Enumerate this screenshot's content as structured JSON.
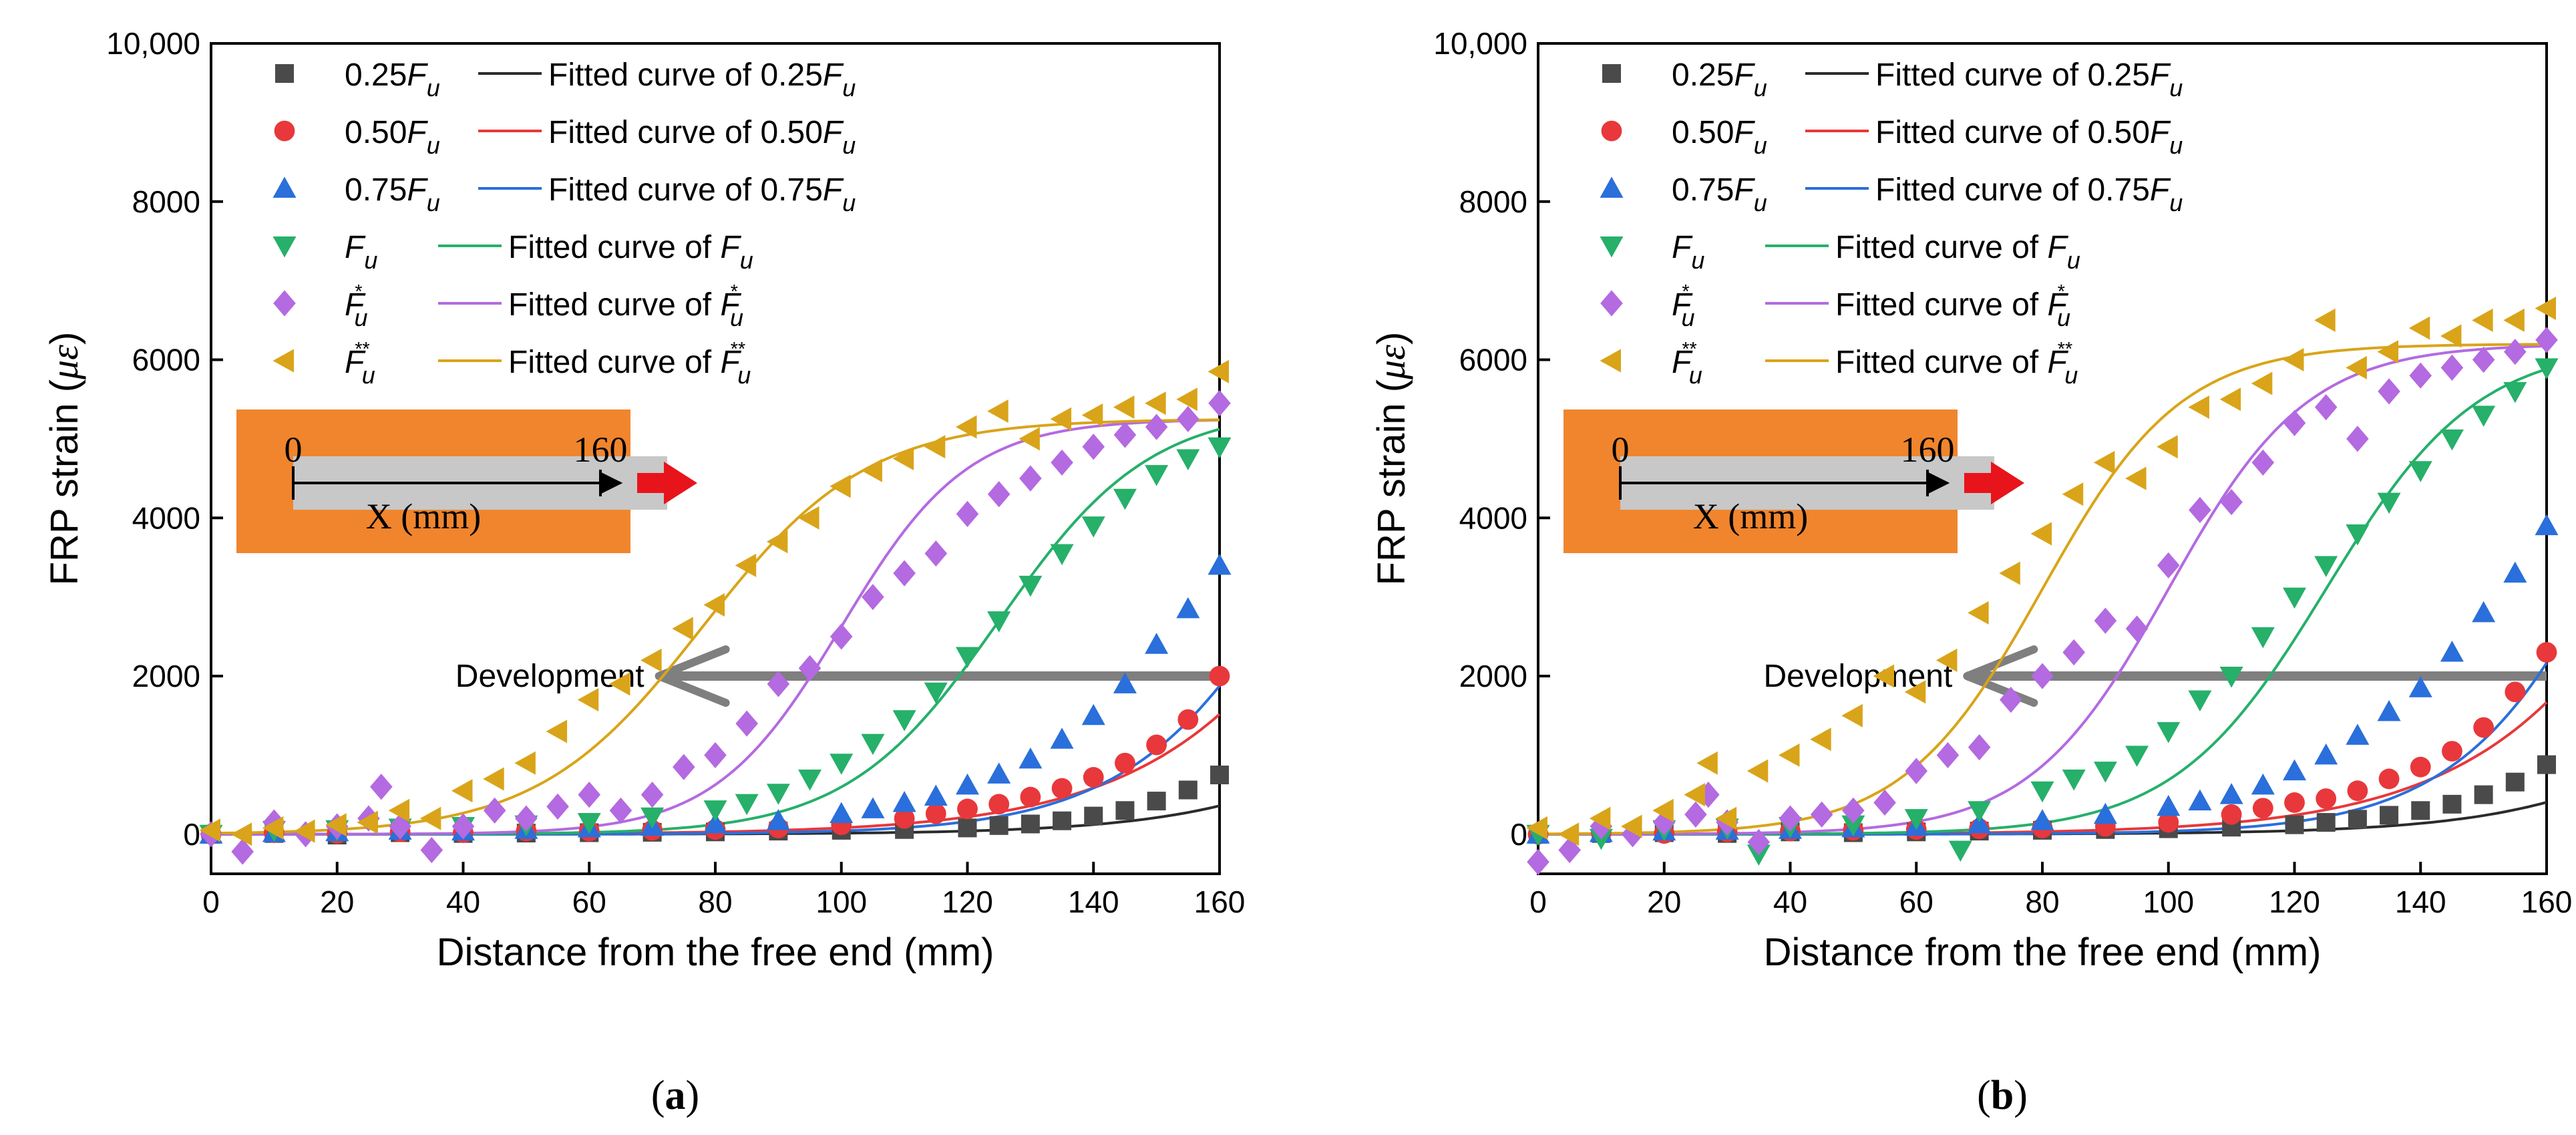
{
  "x_axis_label": "Distance from the free end (mm)",
  "y_axis_label_prefix": "FRP strain (",
  "y_axis_label_unit": "με",
  "y_axis_label_suffix": ")",
  "legend": [
    {
      "sym": "square",
      "color": "#4a4a4a",
      "line": "#2b2b2b",
      "label_num": "0.25",
      "fit_prefix": "Fitted curve of 0.25",
      "base": "F",
      "sub": "u",
      "sup": ""
    },
    {
      "sym": "circle",
      "color": "#e8383b",
      "line": "#e8383b",
      "label_num": "0.50",
      "fit_prefix": "Fitted curve of 0.50",
      "base": "F",
      "sub": "u",
      "sup": ""
    },
    {
      "sym": "tri-up",
      "color": "#2a6fdb",
      "line": "#2a6fdb",
      "label_num": "0.75",
      "fit_prefix": "Fitted curve of 0.75",
      "base": "F",
      "sub": "u",
      "sup": ""
    },
    {
      "sym": "tri-down",
      "color": "#26b06a",
      "line": "#26b06a",
      "label_num": "",
      "fit_prefix": "Fitted curve of ",
      "base": "F",
      "sub": "u",
      "sup": ""
    },
    {
      "sym": "diamond",
      "color": "#b46ae0",
      "line": "#b46ae0",
      "label_num": "",
      "fit_prefix": "Fitted curve of ",
      "base": "F",
      "sub": "u",
      "sup": "*"
    },
    {
      "sym": "tri-left",
      "color": "#d9a419",
      "line": "#d9a419",
      "label_num": "",
      "fit_prefix": "Fitted curve of ",
      "base": "F",
      "sub": "u",
      "sup": "**"
    }
  ],
  "inset": {
    "start_label": "0",
    "end_label": "160",
    "axis_label": "X (mm)",
    "bg_color": "#f0852d",
    "bar_color": "#c8c8c8",
    "arrow_color": "#e8141b"
  },
  "development_label": "Development",
  "chart_data": [
    {
      "panel_label": "a",
      "type": "scatter",
      "title": "",
      "xlabel": "Distance from the free end (mm)",
      "ylabel": "FRP strain (με)",
      "xlim": [
        0,
        160
      ],
      "ylim": [
        -500,
        10000
      ],
      "xticks": [
        0,
        20,
        40,
        60,
        80,
        100,
        120,
        140,
        160
      ],
      "yticks": [
        0,
        2000,
        4000,
        6000,
        8000,
        10000
      ],
      "ytick_labels": [
        "0",
        "2000",
        "4000",
        "6000",
        "8000",
        "10,000"
      ],
      "development_arrow": {
        "x_start": 160,
        "x_end": 70,
        "y": 2000
      },
      "series": [
        {
          "name": "0.25Fu",
          "x": [
            0,
            10,
            20,
            30,
            40,
            50,
            60,
            70,
            80,
            90,
            100,
            110,
            120,
            125,
            130,
            135,
            140,
            145,
            150,
            155,
            160
          ],
          "y": [
            0,
            10,
            -10,
            20,
            10,
            15,
            20,
            25,
            30,
            40,
            50,
            60,
            80,
            110,
            130,
            170,
            230,
            300,
            420,
            560,
            750
          ]
        },
        {
          "name": "0.50Fu",
          "x": [
            0,
            10,
            20,
            30,
            40,
            50,
            60,
            70,
            80,
            90,
            100,
            110,
            115,
            120,
            125,
            130,
            135,
            140,
            145,
            150,
            155,
            160
          ],
          "y": [
            0,
            20,
            10,
            30,
            20,
            40,
            40,
            50,
            60,
            80,
            120,
            200,
            260,
            320,
            380,
            470,
            580,
            720,
            900,
            1130,
            1450,
            2000
          ]
        },
        {
          "name": "0.75Fu",
          "x": [
            0,
            10,
            20,
            30,
            40,
            50,
            60,
            70,
            80,
            90,
            100,
            105,
            110,
            115,
            120,
            125,
            130,
            135,
            140,
            145,
            150,
            155,
            160
          ],
          "y": [
            0,
            20,
            30,
            50,
            40,
            60,
            80,
            100,
            130,
            170,
            260,
            320,
            400,
            480,
            620,
            760,
            950,
            1200,
            1500,
            1900,
            2400,
            2850,
            3400
          ]
        },
        {
          "name": "Fu",
          "x": [
            0,
            10,
            20,
            30,
            40,
            50,
            60,
            70,
            80,
            85,
            90,
            95,
            100,
            105,
            110,
            115,
            120,
            125,
            130,
            135,
            140,
            145,
            150,
            155,
            160
          ],
          "y": [
            0,
            50,
            60,
            80,
            100,
            120,
            150,
            220,
            310,
            390,
            520,
            700,
            900,
            1150,
            1450,
            1800,
            2250,
            2700,
            3150,
            3550,
            3900,
            4250,
            4550,
            4750,
            4900
          ]
        },
        {
          "name": "Fu*",
          "x": [
            0,
            5,
            10,
            15,
            20,
            25,
            27,
            30,
            35,
            40,
            45,
            50,
            55,
            60,
            65,
            70,
            75,
            80,
            85,
            90,
            95,
            100,
            105,
            110,
            115,
            120,
            125,
            130,
            135,
            140,
            145,
            150,
            155,
            160
          ],
          "y": [
            0,
            -220,
            150,
            0,
            100,
            200,
            600,
            100,
            -200,
            100,
            300,
            200,
            350,
            500,
            300,
            500,
            850,
            1000,
            1400,
            1900,
            2100,
            2500,
            3000,
            3300,
            3550,
            4050,
            4300,
            4500,
            4700,
            4900,
            5050,
            5150,
            5250,
            5450
          ]
        },
        {
          "name": "Fu**",
          "x": [
            0,
            5,
            10,
            15,
            20,
            25,
            30,
            35,
            40,
            45,
            50,
            55,
            60,
            65,
            70,
            75,
            80,
            85,
            90,
            95,
            100,
            105,
            110,
            115,
            120,
            125,
            130,
            135,
            140,
            145,
            150,
            155,
            160
          ],
          "y": [
            50,
            0,
            80,
            40,
            120,
            150,
            300,
            200,
            550,
            700,
            900,
            1300,
            1700,
            1900,
            2200,
            2600,
            2900,
            3400,
            3700,
            4000,
            4400,
            4600,
            4750,
            4900,
            5150,
            5350,
            5000,
            5250,
            5300,
            5400,
            5450,
            5500,
            5850
          ]
        }
      ],
      "fitted_curves": [
        {
          "name": "Fitted curve of 0.25Fu",
          "a": 0,
          "b": 8000,
          "x0": 215,
          "w": 18
        },
        {
          "name": "Fitted curve of 0.50Fu",
          "a": 0,
          "b": 20000,
          "x0": 210,
          "w": 20
        },
        {
          "name": "Fitted curve of 0.75Fu",
          "a": 0,
          "b": 9000,
          "x0": 180,
          "w": 15
        },
        {
          "name": "Fitted curve of Fu",
          "a": 0,
          "b": 5400,
          "x0": 125,
          "w": 12
        },
        {
          "name": "Fitted curve of Fu*",
          "a": 0,
          "b": 5250,
          "x0": 100,
          "w": 10
        },
        {
          "name": "Fitted curve of Fu**",
          "a": 0,
          "b": 5250,
          "x0": 78,
          "w": 13
        }
      ]
    },
    {
      "panel_label": "b",
      "type": "scatter",
      "title": "",
      "xlabel": "Distance from the free end (mm)",
      "ylabel": "FRP strain (με)",
      "xlim": [
        0,
        160
      ],
      "ylim": [
        -500,
        10000
      ],
      "xticks": [
        0,
        20,
        40,
        60,
        80,
        100,
        120,
        140,
        160
      ],
      "yticks": [
        0,
        2000,
        4000,
        6000,
        8000,
        10000
      ],
      "ytick_labels": [
        "0",
        "2000",
        "4000",
        "6000",
        "8000",
        "10,000"
      ],
      "development_arrow": {
        "x_start": 160,
        "x_end": 67,
        "y": 2000
      },
      "series": [
        {
          "name": "0.25Fu",
          "x": [
            0,
            10,
            20,
            30,
            40,
            50,
            60,
            70,
            80,
            90,
            100,
            110,
            120,
            125,
            130,
            135,
            140,
            145,
            150,
            155,
            160
          ],
          "y": [
            0,
            10,
            20,
            10,
            30,
            20,
            30,
            40,
            50,
            60,
            70,
            90,
            120,
            150,
            190,
            240,
            300,
            380,
            500,
            660,
            880
          ]
        },
        {
          "name": "0.50Fu",
          "x": [
            0,
            10,
            20,
            30,
            40,
            50,
            60,
            70,
            80,
            90,
            100,
            110,
            115,
            120,
            125,
            130,
            135,
            140,
            145,
            150,
            155,
            160
          ],
          "y": [
            0,
            20,
            10,
            30,
            40,
            50,
            60,
            70,
            80,
            100,
            150,
            250,
            330,
            400,
            450,
            550,
            700,
            850,
            1050,
            1350,
            1800,
            2300
          ]
        },
        {
          "name": "0.75Fu",
          "x": [
            0,
            10,
            20,
            30,
            40,
            50,
            60,
            70,
            80,
            90,
            100,
            105,
            110,
            115,
            120,
            125,
            130,
            135,
            140,
            145,
            150,
            155,
            160
          ],
          "y": [
            0,
            20,
            40,
            50,
            60,
            80,
            100,
            130,
            170,
            250,
            350,
            420,
            500,
            620,
            800,
            1000,
            1250,
            1550,
            1850,
            2300,
            2800,
            3300,
            3900
          ]
        },
        {
          "name": "Fu",
          "x": [
            0,
            10,
            20,
            30,
            35,
            40,
            50,
            60,
            67,
            70,
            80,
            85,
            90,
            95,
            100,
            105,
            110,
            115,
            120,
            125,
            130,
            135,
            140,
            145,
            150,
            155,
            160
          ],
          "y": [
            0,
            -50,
            60,
            80,
            -250,
            100,
            120,
            200,
            -200,
            300,
            550,
            700,
            800,
            1000,
            1300,
            1700,
            2000,
            2500,
            3000,
            3400,
            3800,
            4200,
            4600,
            5000,
            5300,
            5600,
            5900
          ]
        },
        {
          "name": "Fu*",
          "x": [
            0,
            5,
            10,
            15,
            20,
            25,
            27,
            30,
            35,
            40,
            45,
            50,
            55,
            60,
            65,
            70,
            75,
            80,
            85,
            90,
            95,
            100,
            105,
            110,
            115,
            120,
            125,
            130,
            135,
            140,
            145,
            150,
            155,
            160
          ],
          "y": [
            -350,
            -200,
            100,
            0,
            150,
            250,
            500,
            150,
            -100,
            200,
            250,
            300,
            400,
            800,
            1000,
            1100,
            1700,
            2000,
            2300,
            2700,
            2600,
            3400,
            4100,
            4200,
            4700,
            5200,
            5400,
            5000,
            5600,
            5800,
            5900,
            6000,
            6100,
            6250
          ]
        },
        {
          "name": "Fu**",
          "x": [
            0,
            5,
            10,
            15,
            20,
            25,
            27,
            30,
            35,
            40,
            45,
            50,
            55,
            60,
            65,
            70,
            75,
            80,
            85,
            90,
            95,
            100,
            105,
            110,
            115,
            120,
            125,
            130,
            135,
            140,
            145,
            150,
            155,
            160
          ],
          "y": [
            80,
            0,
            200,
            100,
            300,
            500,
            900,
            200,
            800,
            1000,
            1200,
            1500,
            2000,
            1800,
            2200,
            2800,
            3300,
            3800,
            4300,
            4700,
            4500,
            4900,
            5400,
            5500,
            5700,
            6000,
            6500,
            5900,
            6100,
            6400,
            6300,
            6500,
            6500,
            6650
          ]
        }
      ],
      "fitted_curves": [
        {
          "name": "Fitted curve of 0.25Fu",
          "a": 0,
          "b": 9000,
          "x0": 215,
          "w": 18
        },
        {
          "name": "Fitted curve of 0.50Fu",
          "a": 0,
          "b": 22000,
          "x0": 210,
          "w": 20
        },
        {
          "name": "Fitted curve of 0.75Fu",
          "a": 0,
          "b": 10000,
          "x0": 178,
          "w": 14
        },
        {
          "name": "Fitted curve of Fu",
          "a": 0,
          "b": 6200,
          "x0": 125,
          "w": 12
        },
        {
          "name": "Fitted curve of Fu*",
          "a": 0,
          "b": 6200,
          "x0": 100,
          "w": 11
        },
        {
          "name": "Fitted curve of Fu**",
          "a": 0,
          "b": 6200,
          "x0": 80,
          "w": 11
        }
      ]
    }
  ]
}
